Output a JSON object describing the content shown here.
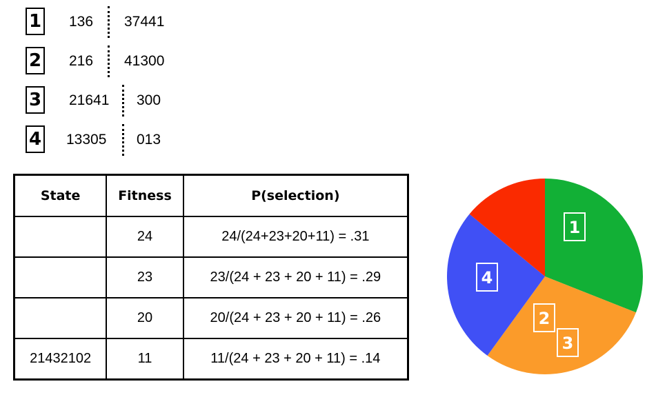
{
  "chromosomes": [
    {
      "index": "1",
      "left": "136",
      "right": "37441"
    },
    {
      "index": "2",
      "left": "216",
      "right": "41300"
    },
    {
      "index": "3",
      "left": "21641",
      "right": "300"
    },
    {
      "index": "4",
      "left": "13305",
      "right": "013"
    }
  ],
  "table": {
    "headers": [
      "State",
      "Fitness",
      "P(selection)"
    ],
    "rows": [
      {
        "state": "",
        "fitness": "24",
        "p": "24/(24+23+20+11) = .31"
      },
      {
        "state": "",
        "fitness": "23",
        "p": "23/(24 + 23 + 20 + 11) = .29"
      },
      {
        "state": "",
        "fitness": "20",
        "p": "20/(24 + 23 + 20 + 11) = .26"
      },
      {
        "state": "21432102",
        "fitness": "11",
        "p": "11/(24 + 23 + 20 + 11) = .14"
      }
    ]
  },
  "chart_data": {
    "type": "pie",
    "slices": [
      {
        "label": "1",
        "value": 0.31,
        "color": "#12b036"
      },
      {
        "label": "2",
        "value": 0.29,
        "color": "#fb9b2a"
      },
      {
        "label": "3",
        "value": 0.26,
        "color": "#4050f5"
      },
      {
        "label": "",
        "value": 0.14,
        "color": "#fa2a00"
      }
    ],
    "slice_labels_shown": [
      "1",
      "2",
      "3",
      "4"
    ]
  }
}
